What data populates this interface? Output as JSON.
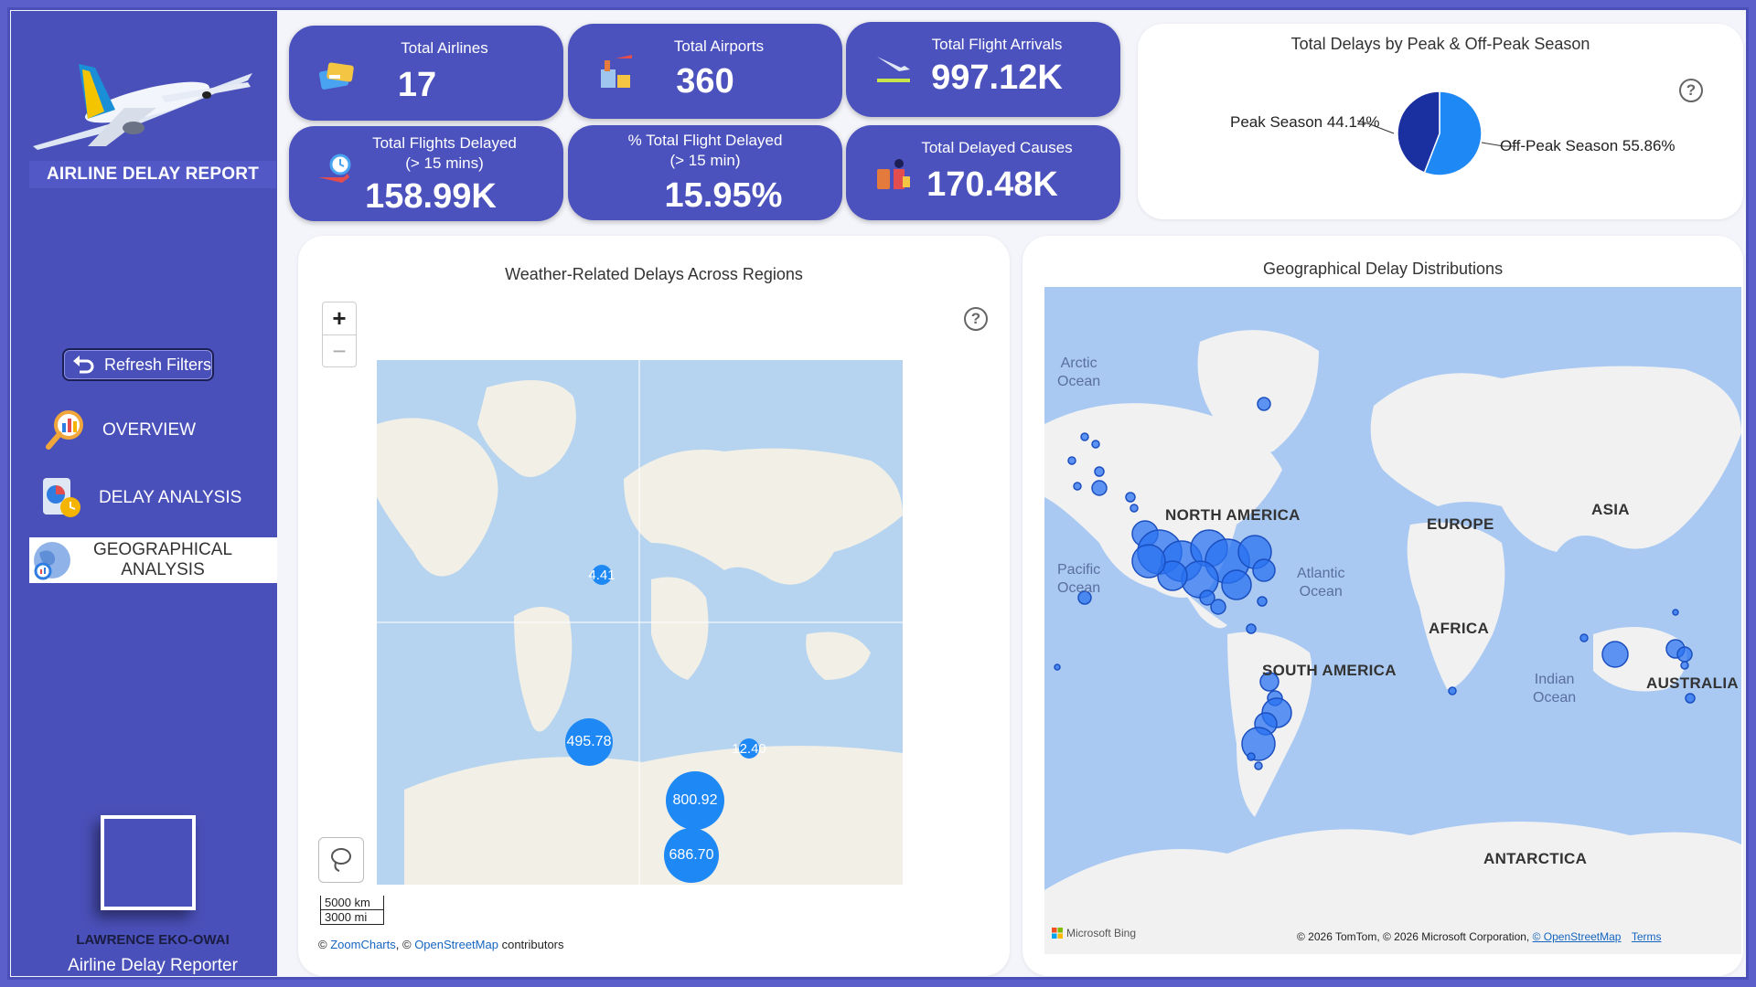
{
  "sidebar": {
    "title": "AIRLINE DELAY REPORT",
    "refresh_label": "Refresh Filters",
    "nav": [
      {
        "label": "OVERVIEW",
        "icon": "magnifier-chart-icon"
      },
      {
        "label": "DELAY ANALYSIS",
        "icon": "pie-clock-icon"
      },
      {
        "label": "GEOGRAPHICAL ANALYSIS",
        "icon": "globe-chart-icon",
        "active": true
      }
    ],
    "author_name": "LAWRENCE EKO-OWAI",
    "author_role": "Airline Delay Reporter"
  },
  "kpis": [
    {
      "title": "Total Airlines",
      "value": "17",
      "icon": "airline-ticket-icon"
    },
    {
      "title": "Total Airports",
      "value": "360",
      "icon": "airport-icon"
    },
    {
      "title": "Total Flight Arrivals",
      "value": "997.12K",
      "icon": "plane-landing-icon"
    },
    {
      "title": "Total Flights Delayed",
      "subtitle": "(> 15 mins)",
      "value": "158.99K",
      "icon": "plane-clock-icon"
    },
    {
      "title": "% Total Flight Delayed",
      "subtitle": "(> 15 min)",
      "value": "15.95%",
      "icon": ""
    },
    {
      "title": "Total Delayed Causes",
      "value": "170.48K",
      "icon": "traveler-luggage-icon"
    }
  ],
  "pie_panel": {
    "title": "Total Delays by Peak & Off-Peak Season",
    "peak_label": "Peak Season 44.14%",
    "offpeak_label": "Off-Peak Season 55.86%",
    "colors": {
      "peak": "#1a2fa0",
      "offpeak": "#1e88f5"
    }
  },
  "chart_data": {
    "type": "pie",
    "title": "Total Delays by Peak & Off-Peak Season",
    "categories": [
      "Peak Season",
      "Off-Peak Season"
    ],
    "values": [
      44.14,
      55.86
    ]
  },
  "weather_map": {
    "title": "Weather-Related Delays Across Regions",
    "zoom_in": "+",
    "zoom_out": "−",
    "bubbles": [
      "4.41",
      "495.78",
      "12.40",
      "800.92",
      "686.70"
    ],
    "scale_km": "5000 km",
    "scale_mi": "3000 mi",
    "attribution_prefix": "©",
    "attribution_zc": "ZoomCharts",
    "attribution_mid": ", ©",
    "attribution_osm": "OpenStreetMap",
    "attribution_suffix": "contributors"
  },
  "geo_map": {
    "title": "Geographical Delay Distributions",
    "continents": [
      "NORTH AMERICA",
      "EUROPE",
      "ASIA",
      "AFRICA",
      "SOUTH AMERICA",
      "AUSTRALIA",
      "ANTARCTICA"
    ],
    "oceans": [
      "Arctic\nOcean",
      "Pacific\nOcean",
      "Atlantic\nOcean",
      "Indian\nOcean"
    ],
    "bing_label": "Microsoft Bing",
    "copyright": "© 2026 TomTom, © 2026 Microsoft Corporation,",
    "osm_link": "© OpenStreetMap",
    "terms_link": "Terms"
  }
}
